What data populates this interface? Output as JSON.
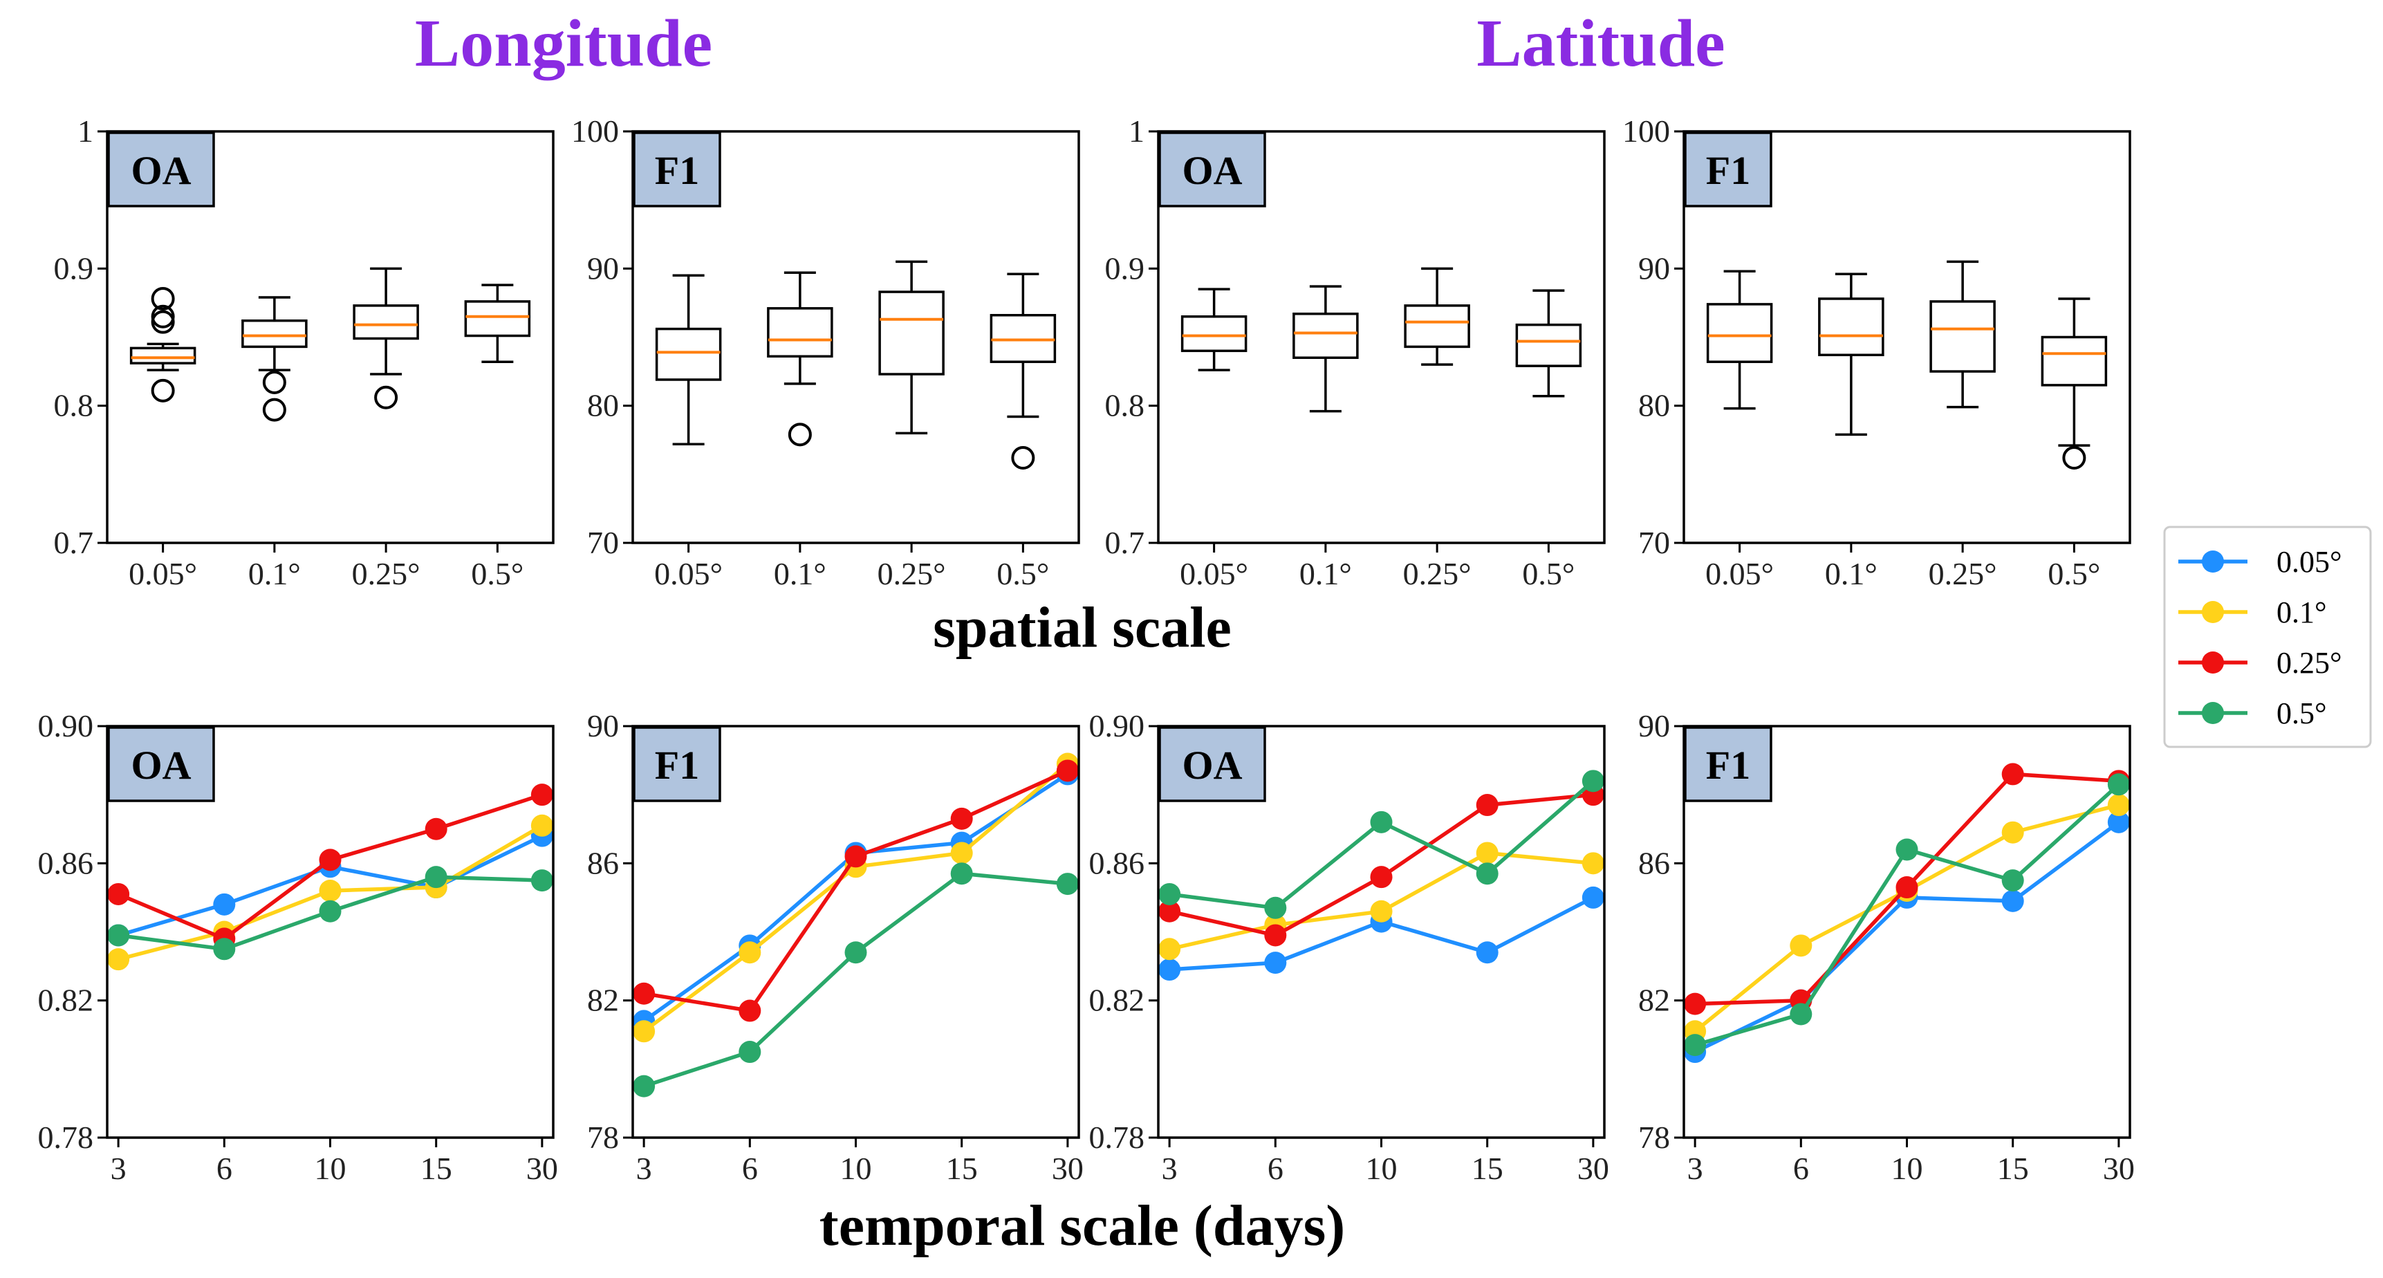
{
  "figure": {
    "title_left": "Longitude",
    "title_right": "Latitude",
    "title_color": "#8a2be2",
    "spatial_xlabel": "spatial scale",
    "temporal_xlabel": "temporal scale (days)"
  },
  "colors": {
    "0.05°": "#1f8fff",
    "0.1°": "#ffd21a",
    "0.25°": "#ee1111",
    "0.5°": "#2aa86a",
    "median": "#ff7f0e",
    "label_box": "#b0c4de"
  },
  "legend": {
    "entries": [
      "0.05°",
      "0.1°",
      "0.25°",
      "0.5°"
    ]
  },
  "chart_data": [
    {
      "type": "box",
      "group": "Longitude",
      "panel_label": "OA",
      "categories": [
        "0.05°",
        "0.1°",
        "0.25°",
        "0.5°"
      ],
      "yticks": [
        "0.7",
        "0.8",
        "0.9",
        "1"
      ],
      "ylim": [
        0.7,
        1.0
      ],
      "boxes": [
        {
          "whislo": 0.826,
          "q1": 0.831,
          "med": 0.835,
          "q3": 0.842,
          "whishi": 0.845,
          "fliers": [
            0.811,
            0.861,
            0.865,
            0.878
          ]
        },
        {
          "whislo": 0.826,
          "q1": 0.843,
          "med": 0.851,
          "q3": 0.862,
          "whishi": 0.879,
          "fliers": [
            0.797,
            0.817
          ]
        },
        {
          "whislo": 0.823,
          "q1": 0.849,
          "med": 0.859,
          "q3": 0.873,
          "whishi": 0.9,
          "fliers": [
            0.806
          ]
        },
        {
          "whislo": 0.832,
          "q1": 0.851,
          "med": 0.865,
          "q3": 0.876,
          "whishi": 0.888,
          "fliers": []
        }
      ]
    },
    {
      "type": "box",
      "group": "Longitude",
      "panel_label": "F1",
      "categories": [
        "0.05°",
        "0.1°",
        "0.25°",
        "0.5°"
      ],
      "yticks": [
        "70",
        "80",
        "90",
        "100"
      ],
      "ylim": [
        70,
        100
      ],
      "boxes": [
        {
          "whislo": 77.2,
          "q1": 81.9,
          "med": 83.9,
          "q3": 85.6,
          "whishi": 89.5,
          "fliers": []
        },
        {
          "whislo": 81.6,
          "q1": 83.6,
          "med": 84.8,
          "q3": 87.1,
          "whishi": 89.7,
          "fliers": [
            77.9
          ]
        },
        {
          "whislo": 78.0,
          "q1": 82.3,
          "med": 86.3,
          "q3": 88.3,
          "whishi": 90.5,
          "fliers": []
        },
        {
          "whislo": 79.2,
          "q1": 83.2,
          "med": 84.8,
          "q3": 86.6,
          "whishi": 89.6,
          "fliers": [
            76.2
          ]
        }
      ]
    },
    {
      "type": "box",
      "group": "Latitude",
      "panel_label": "OA",
      "categories": [
        "0.05°",
        "0.1°",
        "0.25°",
        "0.5°"
      ],
      "yticks": [
        "0.7",
        "0.8",
        "0.9",
        "1"
      ],
      "ylim": [
        0.7,
        1.0
      ],
      "boxes": [
        {
          "whislo": 0.826,
          "q1": 0.84,
          "med": 0.851,
          "q3": 0.865,
          "whishi": 0.885,
          "fliers": []
        },
        {
          "whislo": 0.796,
          "q1": 0.835,
          "med": 0.853,
          "q3": 0.867,
          "whishi": 0.887,
          "fliers": []
        },
        {
          "whislo": 0.83,
          "q1": 0.843,
          "med": 0.861,
          "q3": 0.873,
          "whishi": 0.9,
          "fliers": []
        },
        {
          "whislo": 0.807,
          "q1": 0.829,
          "med": 0.847,
          "q3": 0.859,
          "whishi": 0.884,
          "fliers": []
        }
      ]
    },
    {
      "type": "box",
      "group": "Latitude",
      "panel_label": "F1",
      "categories": [
        "0.05°",
        "0.1°",
        "0.25°",
        "0.5°"
      ],
      "yticks": [
        "70",
        "80",
        "90",
        "100"
      ],
      "ylim": [
        70,
        100
      ],
      "boxes": [
        {
          "whislo": 79.8,
          "q1": 83.2,
          "med": 85.1,
          "q3": 87.4,
          "whishi": 89.8,
          "fliers": []
        },
        {
          "whislo": 77.9,
          "q1": 83.7,
          "med": 85.1,
          "q3": 87.8,
          "whishi": 89.6,
          "fliers": []
        },
        {
          "whislo": 79.9,
          "q1": 82.5,
          "med": 85.6,
          "q3": 87.6,
          "whishi": 90.5,
          "fliers": []
        },
        {
          "whislo": 77.1,
          "q1": 81.5,
          "med": 83.8,
          "q3": 85.0,
          "whishi": 87.8,
          "fliers": [
            76.2
          ]
        }
      ]
    },
    {
      "type": "line",
      "group": "Longitude",
      "panel_label": "OA",
      "x": [
        "3",
        "6",
        "10",
        "15",
        "30"
      ],
      "yticks": [
        "0.78",
        "0.82",
        "0.86",
        "0.90"
      ],
      "ylim": [
        0.78,
        0.9
      ],
      "series": [
        {
          "name": "0.05°",
          "values": [
            0.839,
            0.848,
            0.859,
            0.853,
            0.868
          ]
        },
        {
          "name": "0.1°",
          "values": [
            0.832,
            0.84,
            0.852,
            0.853,
            0.871
          ]
        },
        {
          "name": "0.25°",
          "values": [
            0.851,
            0.838,
            0.861,
            0.87,
            0.88
          ]
        },
        {
          "name": "0.5°",
          "values": [
            0.839,
            0.835,
            0.846,
            0.856,
            0.855
          ]
        }
      ]
    },
    {
      "type": "line",
      "group": "Longitude",
      "panel_label": "F1",
      "x": [
        "3",
        "6",
        "10",
        "15",
        "30"
      ],
      "yticks": [
        "78",
        "82",
        "86",
        "90"
      ],
      "ylim": [
        78,
        90
      ],
      "series": [
        {
          "name": "0.05°",
          "values": [
            81.4,
            83.6,
            86.3,
            86.6,
            88.6
          ]
        },
        {
          "name": "0.1°",
          "values": [
            81.1,
            83.4,
            85.9,
            86.3,
            88.9
          ]
        },
        {
          "name": "0.25°",
          "values": [
            82.2,
            81.7,
            86.2,
            87.3,
            88.7
          ]
        },
        {
          "name": "0.5°",
          "values": [
            79.5,
            80.5,
            83.4,
            85.7,
            85.4
          ]
        }
      ]
    },
    {
      "type": "line",
      "group": "Latitude",
      "panel_label": "OA",
      "x": [
        "3",
        "6",
        "10",
        "15",
        "30"
      ],
      "yticks": [
        "0.78",
        "0.82",
        "0.86",
        "0.90"
      ],
      "ylim": [
        0.78,
        0.9
      ],
      "series": [
        {
          "name": "0.05°",
          "values": [
            0.829,
            0.831,
            0.843,
            0.834,
            0.85
          ]
        },
        {
          "name": "0.1°",
          "values": [
            0.835,
            0.842,
            0.846,
            0.863,
            0.86
          ]
        },
        {
          "name": "0.25°",
          "values": [
            0.846,
            0.839,
            0.856,
            0.877,
            0.88
          ]
        },
        {
          "name": "0.5°",
          "values": [
            0.851,
            0.847,
            0.872,
            0.857,
            0.884
          ]
        }
      ]
    },
    {
      "type": "line",
      "group": "Latitude",
      "panel_label": "F1",
      "x": [
        "3",
        "6",
        "10",
        "15",
        "30"
      ],
      "yticks": [
        "78",
        "82",
        "86",
        "90"
      ],
      "ylim": [
        78,
        90
      ],
      "series": [
        {
          "name": "0.05°",
          "values": [
            80.5,
            82.0,
            85.0,
            84.9,
            87.2
          ]
        },
        {
          "name": "0.1°",
          "values": [
            81.1,
            83.6,
            85.2,
            86.9,
            87.7
          ]
        },
        {
          "name": "0.25°",
          "values": [
            81.9,
            82.0,
            85.3,
            88.6,
            88.4
          ]
        },
        {
          "name": "0.5°",
          "values": [
            80.7,
            81.6,
            86.4,
            85.5,
            88.3
          ]
        }
      ]
    }
  ]
}
